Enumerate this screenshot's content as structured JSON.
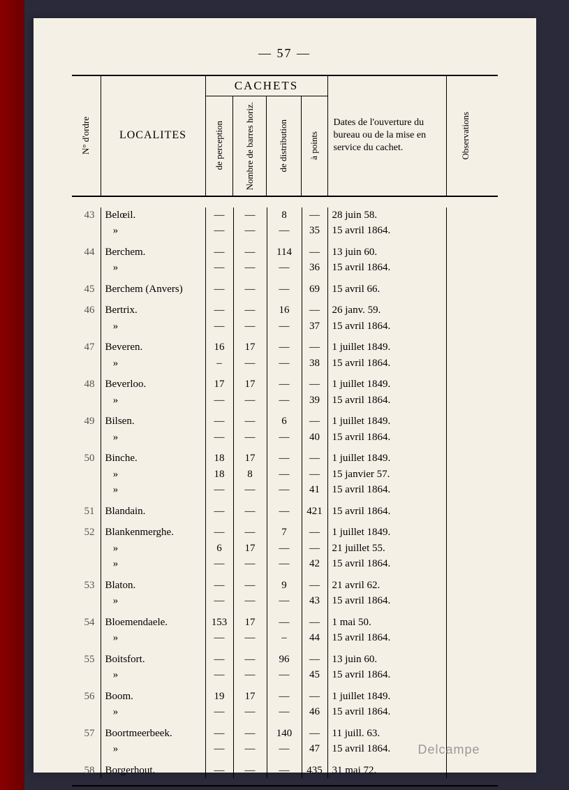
{
  "page_number": "— 57 —",
  "watermark": "Delcampe",
  "colors": {
    "page_bg": "#f5f0e6",
    "book_edge": "#8b0000",
    "outer_bg": "#2a2a3a",
    "text": "#000000",
    "faded_text": "#555555",
    "watermark": "#999999"
  },
  "headers": {
    "ordre": "N° d'ordre",
    "localites": "LOCALITES",
    "cachets": "CACHETS",
    "cachets_sub": {
      "perception": "de perception",
      "barres": "Nombre de barres horiz.",
      "distribution": "de distribution",
      "points": "à points"
    },
    "dates": "Dates de l'ouverture du bureau ou de la mise en service du cachet.",
    "observations": "Observations"
  },
  "rows": [
    {
      "ordre": "43",
      "loc": "Belœil.",
      "c1": "—",
      "c2": "—",
      "c3": "8",
      "c4": "—",
      "date": "28 juin 58."
    },
    {
      "ordre": "",
      "loc": "   »",
      "c1": "—",
      "c2": "—",
      "c3": "—",
      "c4": "35",
      "date": "15 avril 1864."
    },
    {
      "spacer": true
    },
    {
      "ordre": "44",
      "loc": "Berchem.",
      "c1": "—",
      "c2": "—",
      "c3": "114",
      "c4": "—",
      "date": "13 juin 60."
    },
    {
      "ordre": "",
      "loc": "   »",
      "c1": "—",
      "c2": "—",
      "c3": "—",
      "c4": "36",
      "date": "15 avril 1864."
    },
    {
      "spacer": true
    },
    {
      "ordre": "45",
      "loc": "Berchem (Anvers)",
      "c1": "—",
      "c2": "—",
      "c3": "—",
      "c4": "69",
      "date": "15 avril 66."
    },
    {
      "spacer": true
    },
    {
      "ordre": "46",
      "loc": "Bertrix.",
      "c1": "—",
      "c2": "—",
      "c3": "16",
      "c4": "—",
      "date": "26 janv. 59."
    },
    {
      "ordre": "",
      "loc": "   »",
      "c1": "—",
      "c2": "—",
      "c3": "—",
      "c4": "37",
      "date": "15 avril 1864."
    },
    {
      "spacer": true
    },
    {
      "ordre": "47",
      "loc": "Beveren.",
      "c1": "16",
      "c2": "17",
      "c3": "—",
      "c4": "—",
      "date": "1 juillet 1849."
    },
    {
      "ordre": "",
      "loc": "   »",
      "c1": "–",
      "c2": "—",
      "c3": "—",
      "c4": "38",
      "date": "15 avril 1864."
    },
    {
      "spacer": true
    },
    {
      "ordre": "48",
      "loc": "Beverloo.",
      "c1": "17",
      "c2": "17",
      "c3": "—",
      "c4": "—",
      "date": "1 juillet 1849."
    },
    {
      "ordre": "",
      "loc": "   »",
      "c1": "—",
      "c2": "—",
      "c3": "—",
      "c4": "39",
      "date": "15 avril 1864."
    },
    {
      "spacer": true
    },
    {
      "ordre": "49",
      "loc": "Bilsen.",
      "c1": "—",
      "c2": "—",
      "c3": "6",
      "c4": "—",
      "date": "1 juillet 1849."
    },
    {
      "ordre": "",
      "loc": "   »",
      "c1": "—",
      "c2": "—",
      "c3": "—",
      "c4": "40",
      "date": "15 avril 1864."
    },
    {
      "spacer": true
    },
    {
      "ordre": "50",
      "loc": "Binche.",
      "c1": "18",
      "c2": "17",
      "c3": "—",
      "c4": "—",
      "date": "1 juillet 1849."
    },
    {
      "ordre": "",
      "loc": "   »",
      "c1": "18",
      "c2": "8",
      "c3": "—",
      "c4": "—",
      "date": "15 janvier 57."
    },
    {
      "ordre": "",
      "loc": "   »",
      "c1": "—",
      "c2": "—",
      "c3": "—",
      "c4": "41",
      "date": "15 avril 1864."
    },
    {
      "spacer": true
    },
    {
      "ordre": "51",
      "loc": "Blandain.",
      "c1": "—",
      "c2": "—",
      "c3": "—",
      "c4": "421",
      "date": "15 avril 1864."
    },
    {
      "spacer": true
    },
    {
      "ordre": "52",
      "loc": "Blankenmerghe.",
      "c1": "—",
      "c2": "—",
      "c3": "7",
      "c4": "—",
      "date": "1 juillet 1849."
    },
    {
      "ordre": "",
      "loc": "   »",
      "c1": "6",
      "c2": "17",
      "c3": "—",
      "c4": "—",
      "date": "21 juillet 55."
    },
    {
      "ordre": "",
      "loc": "   »",
      "c1": "—",
      "c2": "—",
      "c3": "—",
      "c4": "42",
      "date": "15 avril 1864."
    },
    {
      "spacer": true
    },
    {
      "ordre": "53",
      "loc": "Blaton.",
      "c1": "—",
      "c2": "—",
      "c3": "9",
      "c4": "—",
      "date": "21 avril 62."
    },
    {
      "ordre": "",
      "loc": "   »",
      "c1": "—",
      "c2": "—",
      "c3": "—",
      "c4": "43",
      "date": "15 avril 1864."
    },
    {
      "spacer": true
    },
    {
      "ordre": "54",
      "loc": "Bloemendaele.",
      "c1": "153",
      "c2": "17",
      "c3": "—",
      "c4": "—",
      "date": "1 mai 50."
    },
    {
      "ordre": "",
      "loc": "   »",
      "c1": "—",
      "c2": "—",
      "c3": "–",
      "c4": "44",
      "date": "15 avril 1864."
    },
    {
      "spacer": true
    },
    {
      "ordre": "55",
      "loc": "Boitsfort.",
      "c1": "—",
      "c2": "—",
      "c3": "96",
      "c4": "—",
      "date": "13 juin 60."
    },
    {
      "ordre": "",
      "loc": "   »",
      "c1": "—",
      "c2": "—",
      "c3": "—",
      "c4": "45",
      "date": "15 avril 1864."
    },
    {
      "spacer": true
    },
    {
      "ordre": "56",
      "loc": "Boom.",
      "c1": "19",
      "c2": "17",
      "c3": "—",
      "c4": "—",
      "date": "1 juillet 1849."
    },
    {
      "ordre": "",
      "loc": "   »",
      "c1": "—",
      "c2": "—",
      "c3": "—",
      "c4": "46",
      "date": "15 avril 1864."
    },
    {
      "spacer": true
    },
    {
      "ordre": "57",
      "loc": "Boortmeerbeek.",
      "c1": "—",
      "c2": "—",
      "c3": "140",
      "c4": "—",
      "date": "11 juill. 63."
    },
    {
      "ordre": "",
      "loc": "   »",
      "c1": "—",
      "c2": "—",
      "c3": "—",
      "c4": "47",
      "date": "15 avril 1864."
    },
    {
      "spacer": true
    },
    {
      "ordre": "58",
      "loc": "Borgerhout.",
      "c1": "—",
      "c2": "—",
      "c3": "—",
      "c4": "435",
      "date": "31 mai 72."
    }
  ]
}
